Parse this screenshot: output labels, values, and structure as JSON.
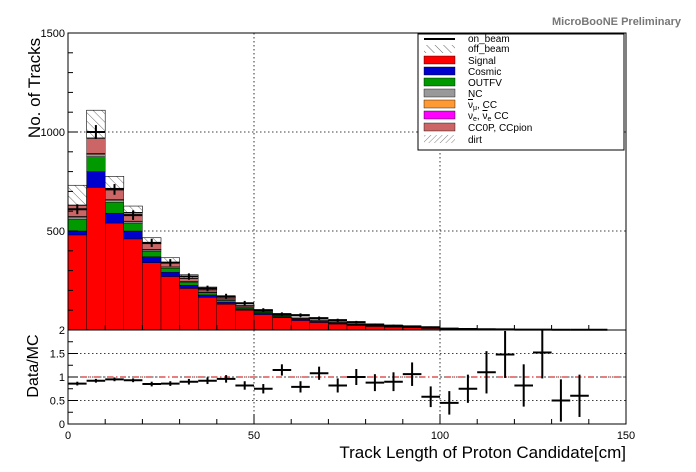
{
  "watermark": "MicroBooNE Preliminary",
  "colors": {
    "Signal": "#ff0000",
    "Cosmic": "#0000cc",
    "OUTFV": "#009900",
    "NC": "#999999",
    "numu_bar_cc": "#ff9933",
    "nue_cc": "#ff00ff",
    "CC0P_CCpion": "#cc6666",
    "ratio_line": "#cc0000"
  },
  "legend": {
    "on_beam": "on_beam",
    "off_beam": "off_beam",
    "signal": "Signal",
    "cosmic": "Cosmic",
    "outfv": "OUTFV",
    "nc": "NC",
    "numubar_main": "ν",
    "numubar_sub": "μ",
    "numubar_rest": ", CC",
    "nue_a": "ν",
    "nue_a_sub": "e",
    "nue_mid": ", ",
    "nue_b": "ν",
    "nue_b_sub": "e",
    "nue_rest": " CC",
    "cc0p": "CC0P, CCpion",
    "dirt": "dirt"
  },
  "chart_data": [
    {
      "type": "bar",
      "stacked": true,
      "ylabel": "No. of Tracks",
      "xlim": [
        0,
        150
      ],
      "ylim": [
        0,
        1500
      ],
      "yticks": [
        "500",
        "1000",
        "1500"
      ],
      "grid": true,
      "legend_position": "top-right",
      "bin_edges": [
        0,
        5,
        10,
        15,
        20,
        25,
        30,
        35,
        40,
        45,
        50,
        55,
        60,
        65,
        70,
        75,
        80,
        85,
        90,
        95,
        100,
        105,
        110,
        115,
        120,
        125,
        130,
        135,
        140,
        145,
        150
      ],
      "stack_series": [
        {
          "name": "Signal",
          "color_key": "Signal",
          "values": [
            480,
            720,
            540,
            460,
            340,
            270,
            210,
            165,
            130,
            100,
            78,
            62,
            48,
            38,
            30,
            23,
            18,
            14,
            11,
            8,
            6,
            5,
            4,
            3,
            2,
            2,
            1,
            1,
            1,
            0
          ]
        },
        {
          "name": "Cosmic",
          "color_key": "Cosmic",
          "values": [
            20,
            80,
            50,
            40,
            30,
            22,
            16,
            12,
            10,
            8,
            6,
            5,
            4,
            3,
            3,
            2,
            2,
            1,
            1,
            1,
            1,
            0,
            0,
            0,
            0,
            0,
            0,
            0,
            0,
            0
          ]
        },
        {
          "name": "OUTFV",
          "color_key": "OUTFV",
          "values": [
            60,
            75,
            55,
            38,
            28,
            20,
            15,
            11,
            9,
            7,
            5,
            4,
            3,
            3,
            2,
            2,
            1,
            1,
            1,
            1,
            0,
            0,
            0,
            0,
            0,
            0,
            0,
            0,
            0,
            0
          ]
        },
        {
          "name": "NC",
          "color_key": "NC",
          "values": [
            10,
            12,
            10,
            8,
            6,
            5,
            4,
            3,
            3,
            2,
            2,
            1,
            1,
            1,
            1,
            1,
            0,
            0,
            0,
            0,
            0,
            0,
            0,
            0,
            0,
            0,
            0,
            0,
            0,
            0
          ]
        },
        {
          "name": "numubar CC",
          "color_key": "numu_bar_cc",
          "values": [
            3,
            4,
            3,
            3,
            2,
            2,
            1,
            1,
            1,
            1,
            1,
            0,
            0,
            0,
            0,
            0,
            0,
            0,
            0,
            0,
            0,
            0,
            0,
            0,
            0,
            0,
            0,
            0,
            0,
            0
          ]
        },
        {
          "name": "nue CC",
          "color_key": "nue_cc",
          "values": [
            1,
            1,
            1,
            1,
            1,
            0,
            0,
            0,
            0,
            0,
            0,
            0,
            0,
            0,
            0,
            0,
            0,
            0,
            0,
            0,
            0,
            0,
            0,
            0,
            0,
            0,
            0,
            0,
            0,
            0
          ]
        },
        {
          "name": "CC0P, CCpion",
          "color_key": "CC0P_CCpion",
          "values": [
            55,
            75,
            55,
            42,
            28,
            20,
            14,
            10,
            8,
            6,
            5,
            4,
            3,
            2,
            2,
            1,
            1,
            1,
            1,
            0,
            0,
            0,
            0,
            0,
            0,
            0,
            0,
            0,
            0,
            0
          ]
        }
      ],
      "off_beam": [
        100,
        140,
        60,
        32,
        30,
        25,
        18,
        14,
        10,
        8,
        6,
        6,
        6,
        4,
        4,
        3,
        3,
        2,
        2,
        2,
        2,
        1,
        1,
        1,
        1,
        1,
        0,
        0,
        0,
        0
      ],
      "dirt": [
        2,
        3,
        2,
        2,
        1,
        1,
        1,
        1,
        1,
        0,
        0,
        0,
        0,
        0,
        0,
        0,
        0,
        0,
        0,
        0,
        0,
        0,
        0,
        0,
        0,
        0,
        0,
        0,
        0,
        0
      ],
      "on_beam": {
        "values": [
          610,
          1000,
          710,
          580,
          440,
          340,
          270,
          210,
          170,
          135,
          100,
          80,
          75,
          60,
          50,
          40,
          28,
          22,
          18,
          14,
          7,
          5,
          4,
          3,
          2,
          2,
          1,
          1,
          1,
          0
        ],
        "errors": [
          25,
          35,
          27,
          24,
          21,
          18,
          16,
          14,
          13,
          12,
          10,
          9,
          9,
          8,
          7,
          6,
          5,
          5,
          4,
          4,
          3,
          2,
          2,
          2,
          1,
          1,
          1,
          1,
          1,
          0
        ]
      }
    },
    {
      "type": "scatter",
      "xlabel": "Track Length of Proton Candidate[cm]",
      "ylabel": "Data/MC",
      "xlim": [
        0,
        150
      ],
      "ylim": [
        0,
        2
      ],
      "xticks": [
        "0",
        "50",
        "100",
        "150"
      ],
      "yticks": [
        "0",
        "0.5",
        "1",
        "1.5",
        "2"
      ],
      "reference_line": 1,
      "grid": true,
      "x": [
        2.5,
        7.5,
        12.5,
        17.5,
        22.5,
        27.5,
        32.5,
        37.5,
        42.5,
        47.5,
        52.5,
        57.5,
        62.5,
        67.5,
        72.5,
        77.5,
        82.5,
        87.5,
        92.5,
        97.5,
        102.5,
        107.5,
        112.5,
        117.5,
        122.5,
        127.5,
        132.5,
        137.5
      ],
      "y": [
        0.86,
        0.92,
        0.95,
        0.93,
        0.85,
        0.86,
        0.9,
        0.92,
        0.96,
        0.82,
        0.75,
        1.15,
        0.79,
        1.08,
        0.82,
        1.0,
        0.88,
        0.9,
        1.06,
        0.58,
        0.45,
        0.75,
        1.1,
        1.48,
        0.82,
        1.52,
        0.5,
        0.6
      ],
      "yerr": [
        0.04,
        0.04,
        0.04,
        0.04,
        0.05,
        0.05,
        0.06,
        0.07,
        0.08,
        0.09,
        0.1,
        0.12,
        0.12,
        0.14,
        0.15,
        0.17,
        0.18,
        0.2,
        0.25,
        0.22,
        0.25,
        0.3,
        0.45,
        0.5,
        0.45,
        0.55,
        0.45,
        0.45
      ]
    }
  ]
}
